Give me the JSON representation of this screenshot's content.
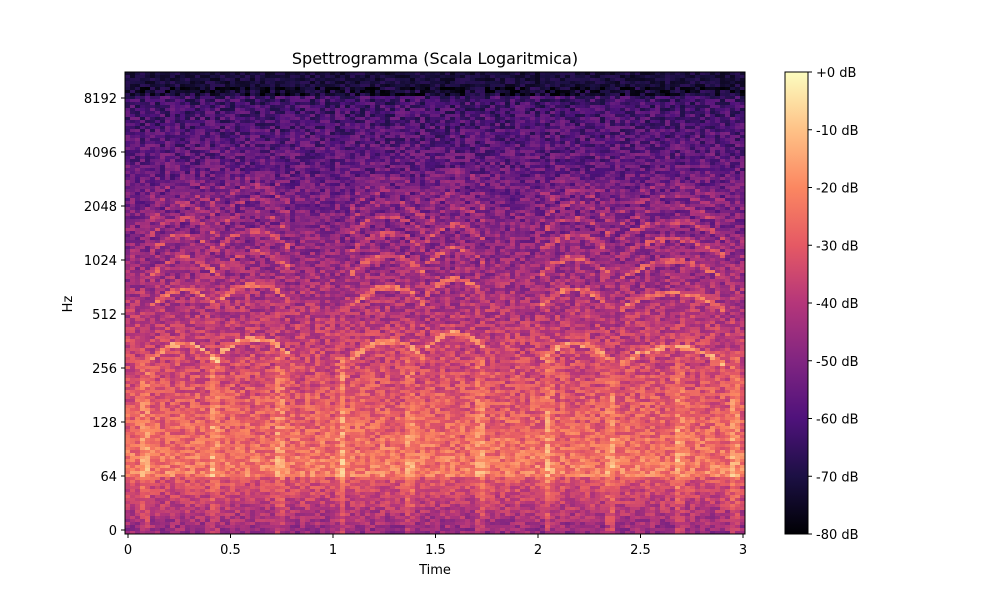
{
  "chart_data": {
    "type": "heatmap",
    "title": "Spettrogramma (Scala Logaritmica)",
    "xlabel": "Time",
    "ylabel": "Hz",
    "xlim": [
      0,
      3
    ],
    "x_ticks": [
      0,
      0.5,
      1,
      1.5,
      2,
      2.5,
      3
    ],
    "x_tick_labels": [
      "0",
      "0.5",
      "1",
      "1.5",
      "2",
      "2.5",
      "3"
    ],
    "y_scale": "log (symlog)",
    "y_ticks": [
      0,
      64,
      128,
      256,
      512,
      1024,
      2048,
      4096,
      8192
    ],
    "y_tick_labels": [
      "0",
      "64",
      "128",
      "256",
      "512",
      "1024",
      "2048",
      "4096",
      "8192"
    ],
    "colormap": "magma",
    "color_range_db": [
      -80,
      0
    ],
    "colorbar_ticks": [
      0,
      -10,
      -20,
      -30,
      -40,
      -50,
      -60,
      -70,
      -80
    ],
    "colorbar_tick_labels": [
      "+0 dB",
      "-10 dB",
      "-20 dB",
      "-30 dB",
      "-40 dB",
      "-50 dB",
      "-60 dB",
      "-70 dB",
      "-80 dB"
    ],
    "colormap_stops": [
      "#000004",
      "#1c1044",
      "#4f127b",
      "#812581",
      "#b5367a",
      "#e55964",
      "#fb8761",
      "#fec287",
      "#fcfdbf"
    ],
    "grid": false,
    "colorbar_position": "right"
  }
}
